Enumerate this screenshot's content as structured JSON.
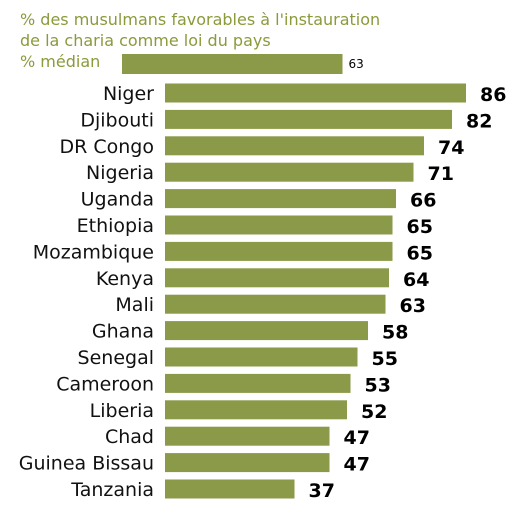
{
  "chart_data": {
    "type": "bar",
    "orientation": "horizontal",
    "title_lines": [
      "% des musulmans favorables à l'instauration",
      "de la charia comme loi du pays"
    ],
    "median": {
      "label": "% médian",
      "value": 63
    },
    "categories": [
      "Niger",
      "Djibouti",
      "DR Congo",
      "Nigeria",
      "Uganda",
      "Ethiopia",
      "Mozambique",
      "Kenya",
      "Mali",
      "Ghana",
      "Senegal",
      "Cameroon",
      "Liberia",
      "Chad",
      "Guinea Bissau",
      "Tanzania"
    ],
    "values": [
      86,
      82,
      74,
      71,
      66,
      65,
      65,
      64,
      63,
      58,
      55,
      53,
      52,
      47,
      47,
      37
    ],
    "bar_color": "#8b9a48",
    "title_color": "#8b9a3b",
    "xlim": [
      0,
      100
    ],
    "grid": false,
    "legend": "none"
  }
}
